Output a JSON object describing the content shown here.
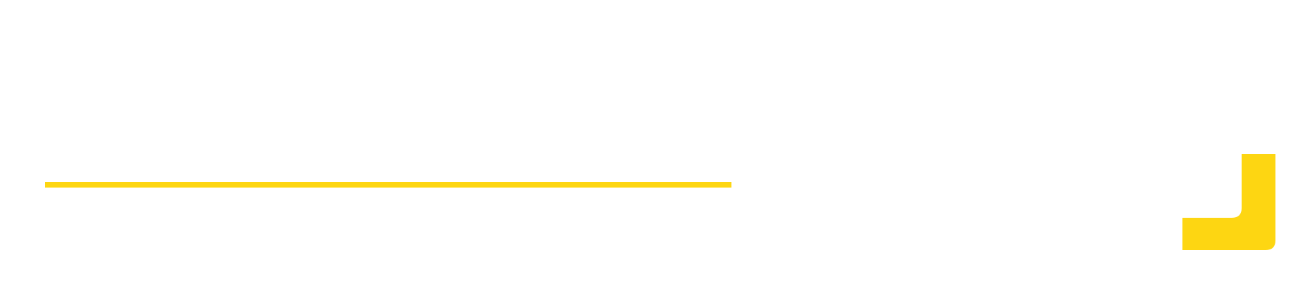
{
  "colors": {
    "background": "#ffffff",
    "accent": "#FDD612"
  },
  "elements": {
    "accent_rule": "horizontal-accent-line",
    "corner_mark": "corner-bracket-icon"
  }
}
